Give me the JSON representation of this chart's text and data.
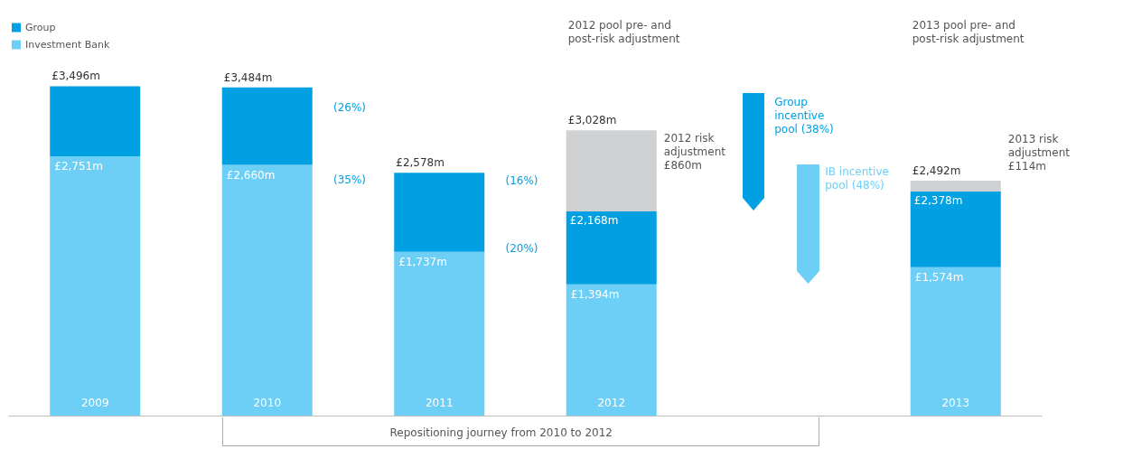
{
  "chart_data": {
    "type": "bar",
    "stacked": true,
    "categories": [
      "2009",
      "2010",
      "2011",
      "2012",
      null,
      "2013"
    ],
    "series": [
      {
        "name": "Investment Bank",
        "color": "#6dcff6",
        "values": [
          2751,
          2660,
          1737,
          1394,
          null,
          1574
        ],
        "value_labels": [
          "£2,751m",
          "£2,660m",
          "£1,737m",
          "£1,394m",
          null,
          "£1,574m"
        ]
      },
      {
        "name": "Group",
        "color": "#00a0e2",
        "values": [
          745,
          824,
          841,
          774,
          null,
          804
        ]
      },
      {
        "color": "#cfd0d2",
        "values": [
          null,
          null,
          null,
          860,
          null,
          114
        ]
      }
    ],
    "totals": [
      "£3,496m",
      "£3,484m",
      "£2,578m",
      "£3,028m",
      null,
      "£2,492m"
    ],
    "annotations": [
      "2012 pool pre- and post-risk adjustment",
      "2012 risk adjustment £860m",
      "Group incentive pool (38%)",
      "IB incentive pool (48%)",
      "2013 pool pre- and post-risk adjustment",
      "2013 risk adjustment £114m",
      "(26%)",
      "(35%)",
      "(16%)",
      "(20%)",
      "Repositioning journey from 2010 to 2012",
      {
        "text": "£2,168m",
        "x": "2012",
        "y": 2168
      },
      {
        "text": "£2,378m",
        "x": "2013",
        "y": 2378
      }
    ],
    "legend": "top left",
    "grid": false
  }
}
